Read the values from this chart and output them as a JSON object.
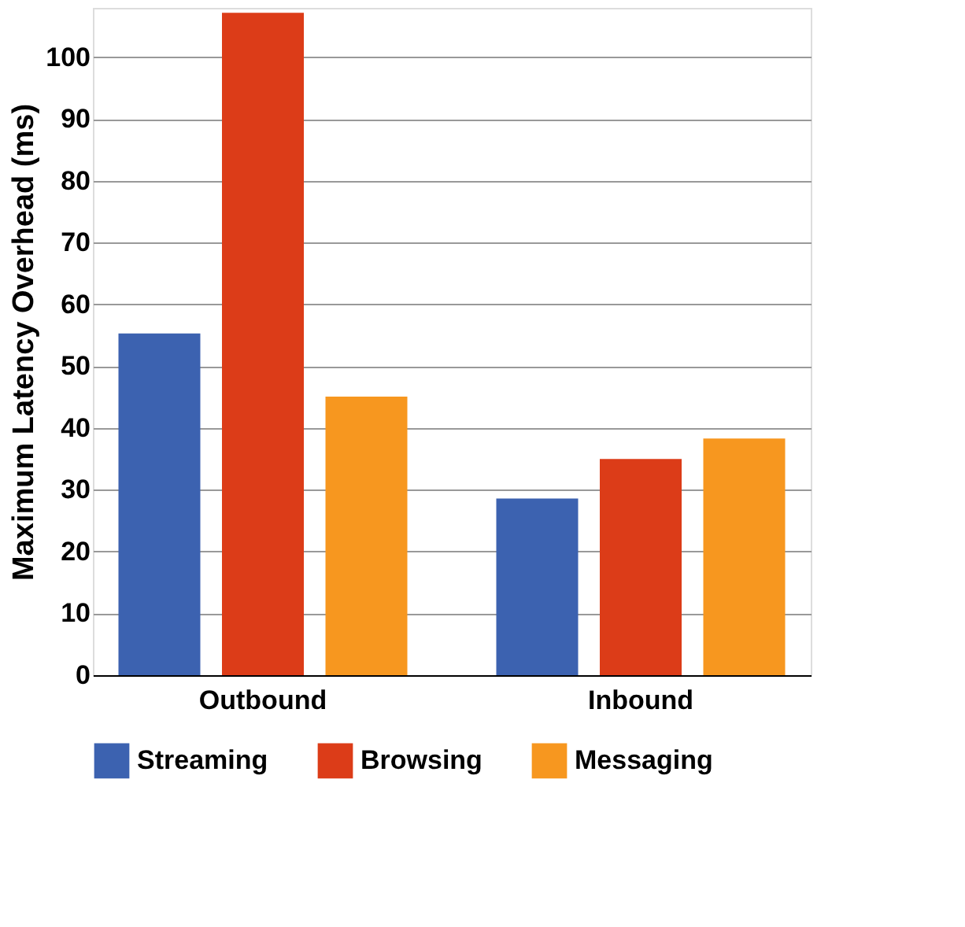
{
  "chart_data": {
    "type": "bar",
    "ylabel": "Maximum Latency Overhead (ms)",
    "categories": [
      "Outbound",
      "Inbound"
    ],
    "series": [
      {
        "name": "Streaming",
        "color": "#3c62b0",
        "values": [
          55.3,
          28.6
        ]
      },
      {
        "name": "Browsing",
        "color": "#dc3c18",
        "values": [
          107.2,
          35.0
        ]
      },
      {
        "name": "Messaging",
        "color": "#f7971f",
        "values": [
          45.1,
          38.3
        ]
      }
    ],
    "ylim": [
      0,
      108
    ],
    "yticks": [
      0,
      10,
      20,
      30,
      40,
      50,
      60,
      70,
      80,
      90,
      100
    ],
    "grid": "y",
    "legend": "bottom"
  }
}
